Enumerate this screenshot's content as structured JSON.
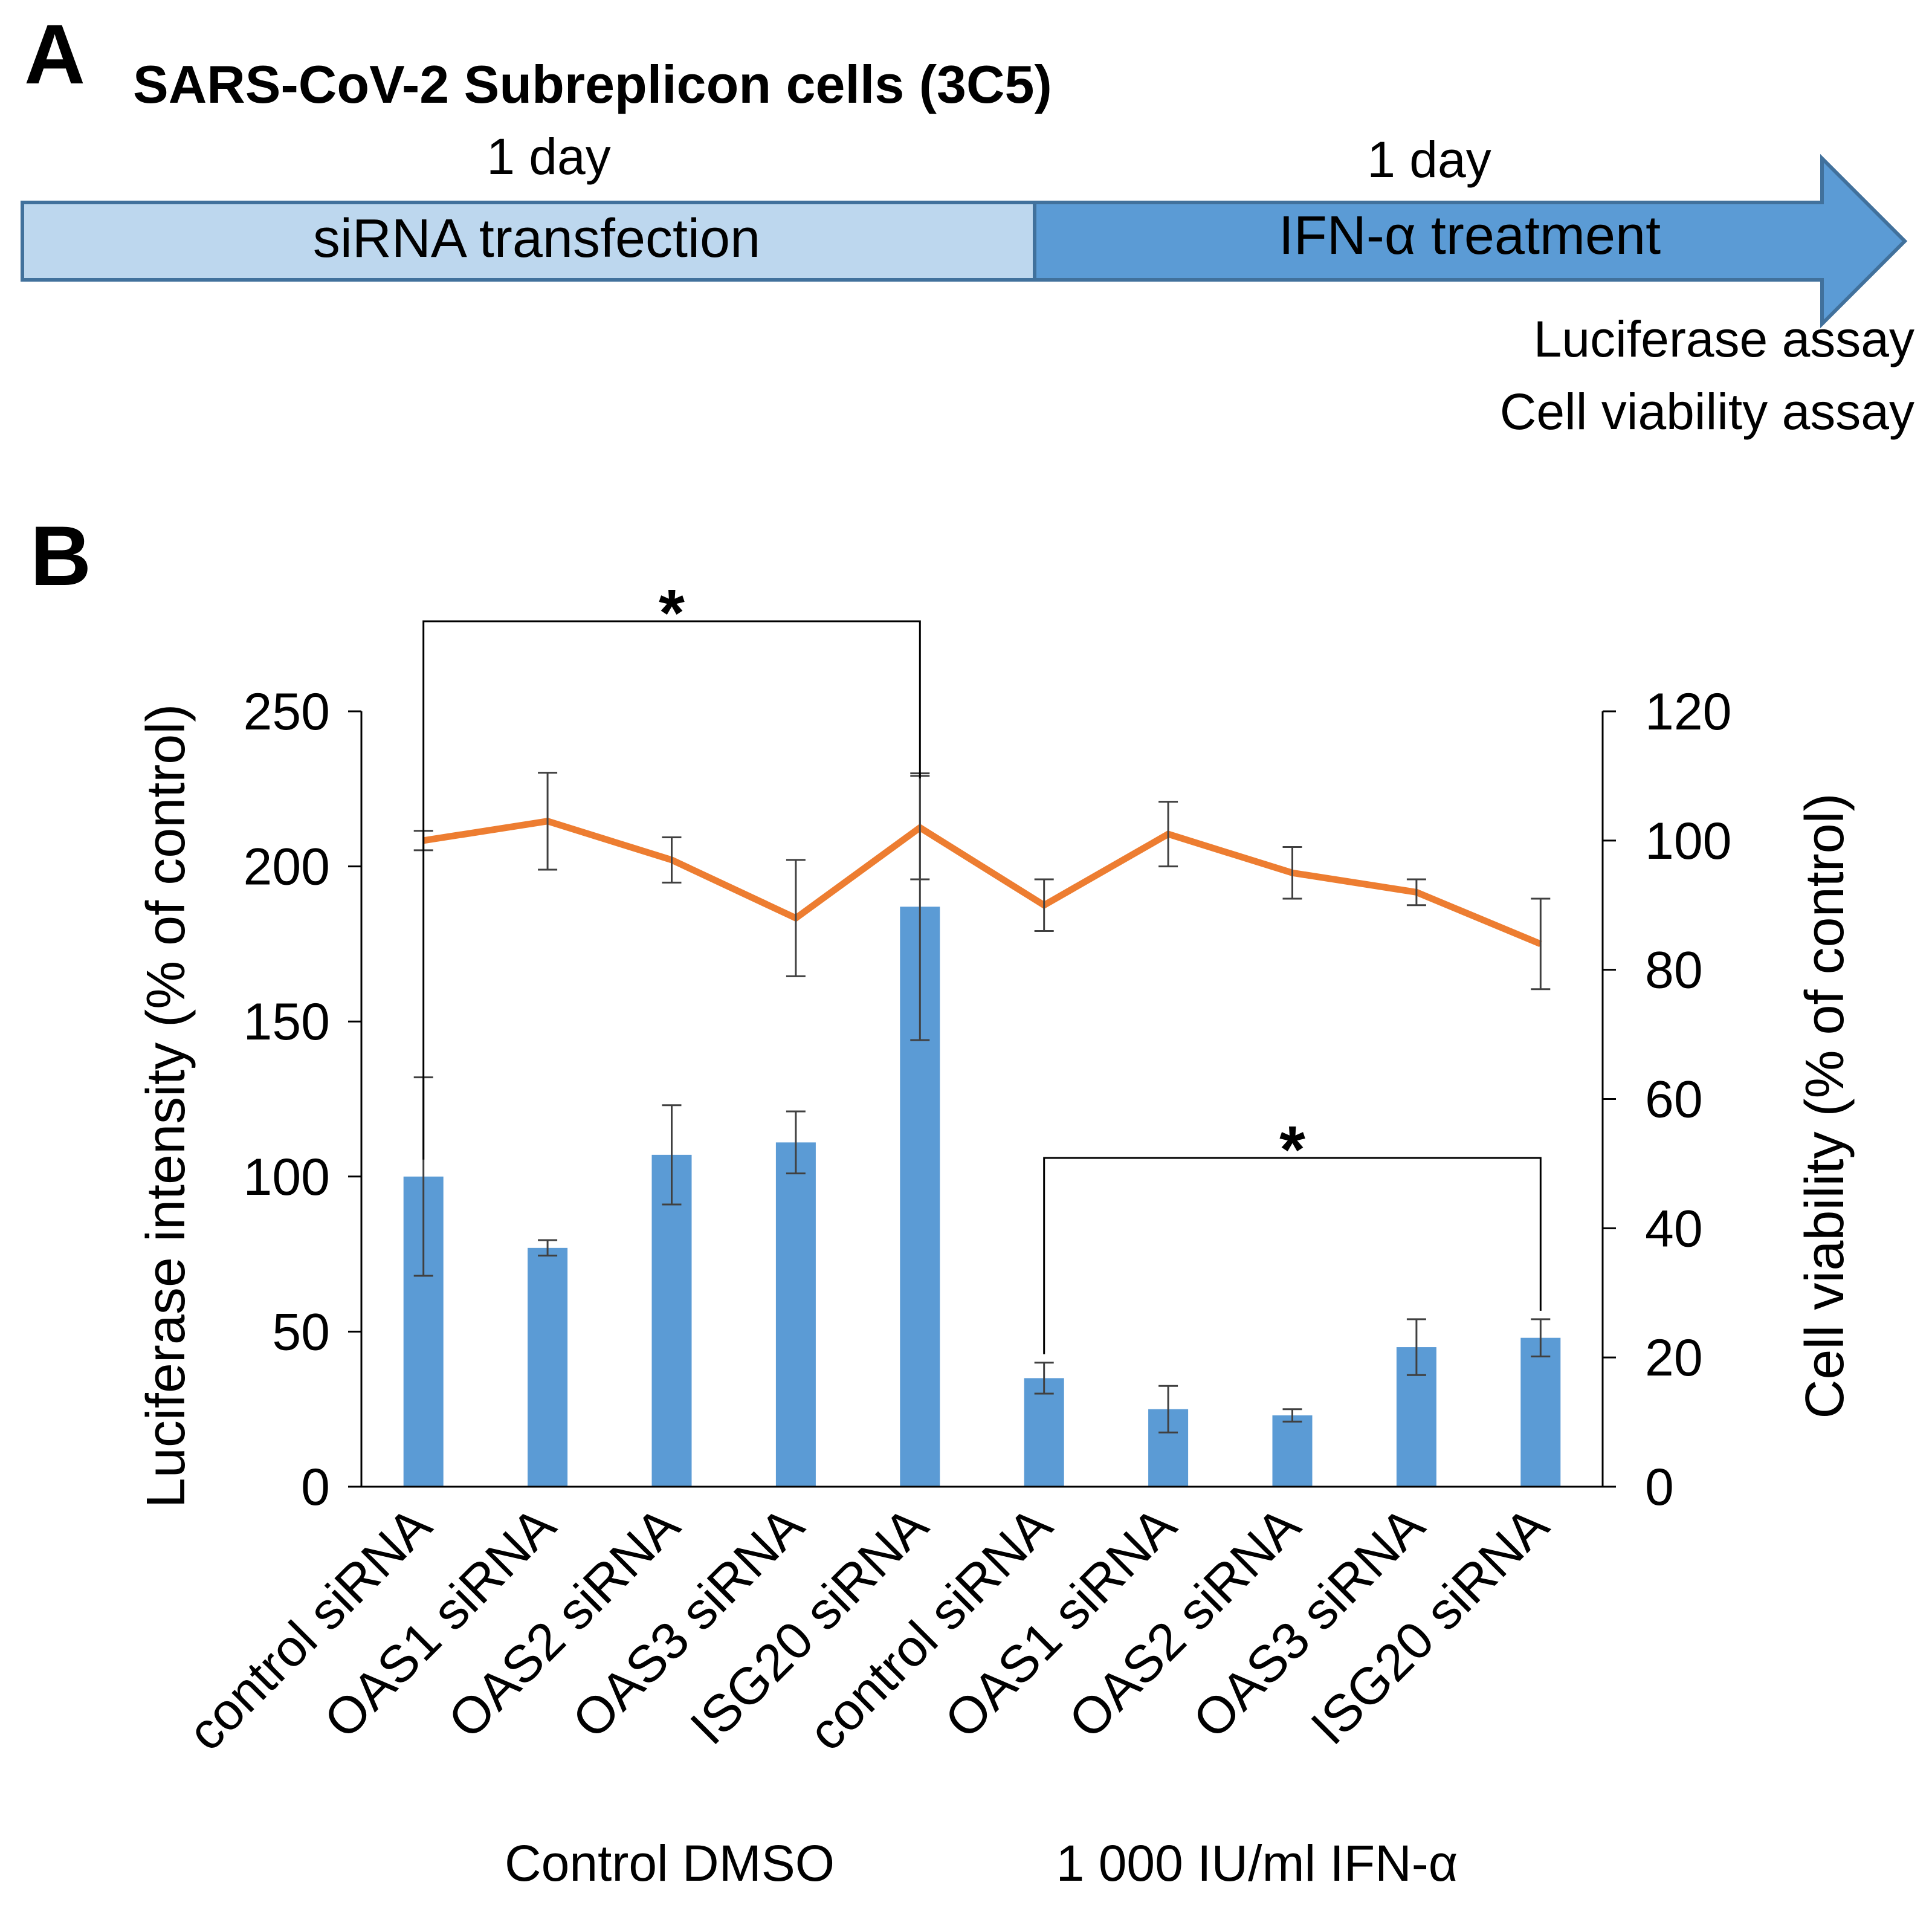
{
  "panel_a": {
    "label": "A",
    "title": "SARS-CoV-2 Subreplicon cells (3C5)",
    "step1": {
      "duration": "1 day",
      "label": "siRNA transfection"
    },
    "step2": {
      "duration": "1 day",
      "label": "IFN-α  treatment"
    },
    "assays": [
      "Luciferase assay",
      "Cell viability assay"
    ],
    "colors": {
      "light": "#BDD7EE",
      "dark": "#5B9BD5",
      "border": "#41719C"
    }
  },
  "panel_b": {
    "label": "B",
    "group_labels": [
      "Control DMSO",
      "1 000 IU/ml IFN-α"
    ],
    "significance": [
      "*",
      "*"
    ]
  },
  "chart_data": {
    "type": "bar",
    "categories": [
      "control siRNA",
      "OAS1 siRNA",
      "OAS2 siRNA",
      "OAS3 siRNA",
      "ISG20 siRNA",
      "control siRNA",
      "OAS1 siRNA",
      "OAS2 siRNA",
      "OAS3 siRNA",
      "ISG20 siRNA"
    ],
    "series": [
      {
        "name": "Luciferase intensity",
        "type": "bar",
        "axis": "left",
        "color": "#5B9BD5",
        "values": [
          100,
          77,
          107,
          111,
          187,
          35,
          25,
          23,
          45,
          48
        ],
        "errors": [
          32,
          2.5,
          16,
          10,
          43,
          5,
          7.5,
          2,
          9,
          6
        ]
      },
      {
        "name": "Cell viability",
        "type": "line",
        "axis": "right",
        "color": "#ED7D31",
        "values": [
          100,
          103,
          97,
          88,
          102,
          90,
          101,
          95,
          92,
          84
        ],
        "errors": [
          1.5,
          7.5,
          3.5,
          9,
          8,
          4,
          5,
          4,
          2,
          7
        ]
      }
    ],
    "ylabel": "Luciferase intensity (% of control)",
    "y2label": "Cell viability (% of control)",
    "ylim": [
      0,
      250
    ],
    "y2lim": [
      0,
      120
    ],
    "yticks": [
      0,
      50,
      100,
      150,
      200,
      250
    ],
    "y2ticks": [
      0,
      20,
      40,
      60,
      80,
      100,
      120
    ],
    "brackets": [
      {
        "from": 0,
        "to": 4,
        "label": "*"
      },
      {
        "from": 5,
        "to": 9,
        "label": "*"
      }
    ]
  }
}
